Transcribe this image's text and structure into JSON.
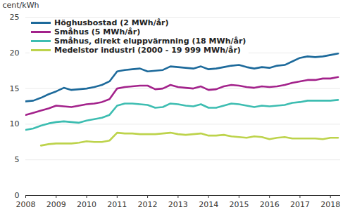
{
  "chart_data": {
    "type": "line",
    "y_label": "cent/kWh",
    "x": [
      2008,
      2008.25,
      2008.5,
      2008.75,
      2009,
      2009.25,
      2009.5,
      2009.75,
      2010,
      2010.25,
      2010.5,
      2010.75,
      2011,
      2011.25,
      2011.5,
      2011.75,
      2012,
      2012.25,
      2012.5,
      2012.75,
      2013,
      2013.25,
      2013.5,
      2013.75,
      2014,
      2014.25,
      2014.5,
      2014.75,
      2015,
      2015.25,
      2015.5,
      2015.75,
      2016,
      2016.25,
      2016.5,
      2016.75,
      2017,
      2017.25,
      2017.5,
      2017.75,
      2018,
      2018.25
    ],
    "series": [
      {
        "name": "Höghusbostad (2 MWh/år)",
        "color": "#1d6a9b",
        "values": [
          13.2,
          13.3,
          13.7,
          14.2,
          14.6,
          15.1,
          14.8,
          14.9,
          15.0,
          15.2,
          15.5,
          16.0,
          17.4,
          17.6,
          17.7,
          17.8,
          17.4,
          17.5,
          17.6,
          18.1,
          18.0,
          17.9,
          17.8,
          18.1,
          17.7,
          17.8,
          18.0,
          18.2,
          18.3,
          18.0,
          17.8,
          18.0,
          17.9,
          18.2,
          18.3,
          18.8,
          19.3,
          19.5,
          19.4,
          19.5,
          19.7,
          19.9
        ]
      },
      {
        "name": "Småhus (5 MWh/år)",
        "color": "#a3228b",
        "values": [
          11.3,
          11.6,
          11.9,
          12.2,
          12.6,
          12.5,
          12.4,
          12.6,
          12.8,
          12.9,
          13.1,
          13.5,
          15.0,
          15.2,
          15.3,
          15.4,
          15.4,
          14.9,
          15.0,
          15.5,
          15.2,
          15.1,
          15.0,
          15.3,
          14.8,
          14.9,
          15.3,
          15.5,
          15.4,
          15.2,
          15.1,
          15.3,
          15.2,
          15.3,
          15.5,
          15.8,
          16.0,
          16.2,
          16.2,
          16.4,
          16.4,
          16.6
        ]
      },
      {
        "name": "Småhus, direkt eluppvärmning (18 MWh/år)",
        "color": "#3dbdb1",
        "values": [
          9.2,
          9.4,
          9.8,
          10.1,
          10.3,
          10.4,
          10.3,
          10.2,
          10.5,
          10.7,
          10.9,
          11.3,
          12.6,
          12.9,
          12.9,
          12.8,
          12.7,
          12.3,
          12.4,
          12.9,
          12.8,
          12.6,
          12.5,
          12.8,
          12.3,
          12.3,
          12.6,
          12.9,
          12.8,
          12.6,
          12.4,
          12.6,
          12.5,
          12.6,
          12.7,
          13.0,
          13.1,
          13.3,
          13.3,
          13.3,
          13.3,
          13.4
        ]
      },
      {
        "name": "Medelstor industri (2000 - 19 999 MWh/år)",
        "color": "#bdd34b",
        "values": [
          null,
          null,
          7.0,
          7.2,
          7.3,
          7.3,
          7.3,
          7.4,
          7.6,
          7.5,
          7.5,
          7.7,
          8.8,
          8.7,
          8.7,
          8.6,
          8.6,
          8.6,
          8.7,
          8.8,
          8.6,
          8.5,
          8.6,
          8.7,
          8.4,
          8.4,
          8.5,
          8.3,
          8.2,
          8.1,
          8.3,
          8.2,
          7.9,
          8.1,
          8.2,
          8.0,
          8.0,
          8.0,
          8.0,
          7.9,
          8.1,
          8.1
        ]
      }
    ],
    "xlim": [
      2008,
      2018.33
    ],
    "xticks": [
      2008,
      2009,
      2010,
      2011,
      2012,
      2013,
      2014,
      2015,
      2016,
      2017,
      2018
    ],
    "ylim": [
      0,
      25
    ],
    "yticks": [
      0,
      5,
      10,
      15,
      20,
      25
    ],
    "grid": true,
    "legend": "top-left"
  }
}
